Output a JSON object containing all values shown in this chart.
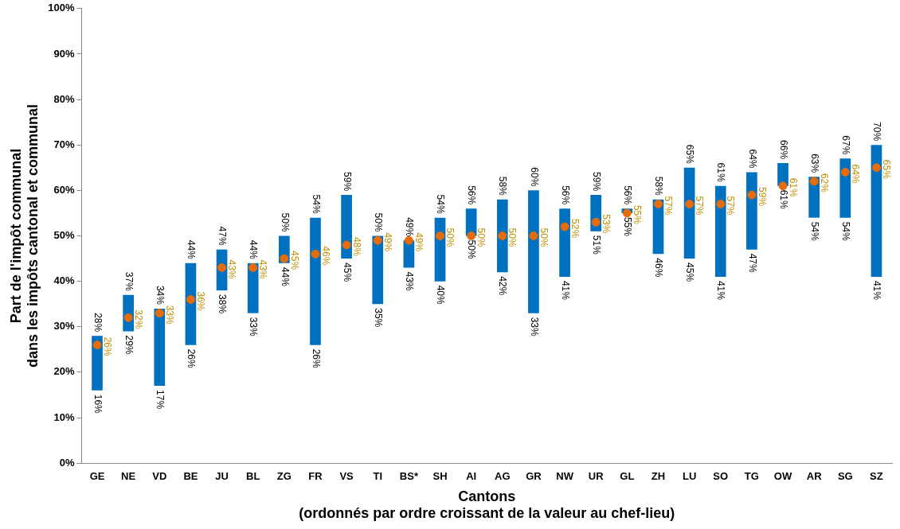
{
  "chart_data": {
    "type": "bar",
    "xlabel": "Cantons\n(ordonnés par ordre croissant de la valeur au chef-lieu)",
    "ylabel": "Part de l'impôt communal\ndans les impôts cantonal et communal",
    "categories": [
      "GE",
      "NE",
      "VD",
      "BE",
      "JU",
      "BL",
      "ZG",
      "FR",
      "VS",
      "TI",
      "BS*",
      "SH",
      "AI",
      "AG",
      "GR",
      "NW",
      "UR",
      "GL",
      "ZH",
      "LU",
      "SO",
      "TG",
      "OW",
      "AR",
      "SG",
      "SZ"
    ],
    "series": [
      {
        "color": "#0070c0",
        "base": [
          16,
          29,
          17,
          26,
          38,
          33,
          44,
          26,
          45,
          35,
          43,
          40,
          50,
          42,
          33,
          41,
          51,
          55,
          46,
          45,
          41,
          47,
          61,
          54,
          54,
          41
        ],
        "values": [
          12,
          8,
          17,
          18,
          9,
          11,
          6,
          28,
          14,
          15,
          6,
          14,
          6,
          16,
          27,
          15,
          8,
          1,
          12,
          20,
          20,
          17,
          5,
          9,
          13,
          29
        ]
      },
      {
        "type": "scatter",
        "color": "#e46c0a",
        "marker": "circle",
        "x": [
          "GE",
          "NE",
          "VD",
          "BE",
          "JU",
          "BL",
          "ZG",
          "FR",
          "VS",
          "TI",
          "BS*",
          "SH",
          "AI",
          "AG",
          "GR",
          "NW",
          "UR",
          "GL",
          "ZH",
          "LU",
          "SO",
          "TG",
          "OW",
          "AR",
          "SG",
          "SZ"
        ],
        "values": [
          26,
          32,
          33,
          36,
          43,
          43,
          45,
          46,
          48,
          49,
          49,
          50,
          50,
          50,
          50,
          52,
          53,
          55,
          57,
          57,
          57,
          59,
          61,
          62,
          64,
          65
        ],
        "value_labels": [
          "26%",
          "32%",
          "33%",
          "36%",
          "43%",
          "43%",
          "45%",
          "46%",
          "48%",
          "49%",
          "49%",
          "50%",
          "50%",
          "50%",
          "50%",
          "52%",
          "53%",
          "55%",
          "57%",
          "57%",
          "57%",
          "59%",
          "61%",
          "62%",
          "64%",
          "65%"
        ]
      }
    ],
    "ylim": [
      0,
      100
    ],
    "yticks": [
      {
        "value": 0,
        "label": "0%"
      },
      {
        "value": 10,
        "label": "10%"
      },
      {
        "value": 20,
        "label": "20%"
      },
      {
        "value": 30,
        "label": "30%"
      },
      {
        "value": 40,
        "label": "40%"
      },
      {
        "value": 50,
        "label": "50%"
      },
      {
        "value": 60,
        "label": "60%"
      },
      {
        "value": 70,
        "label": "70%"
      },
      {
        "value": 80,
        "label": "80%"
      },
      {
        "value": 90,
        "label": "90%"
      },
      {
        "value": 100,
        "label": "100%"
      }
    ],
    "grid": false,
    "legend": false,
    "annotations": [
      {
        "text": "28%",
        "x": "GE",
        "y": 28
      },
      {
        "text": "16%",
        "x": "GE",
        "y": 16
      },
      {
        "text": "37%",
        "x": "NE",
        "y": 37
      },
      {
        "text": "29%",
        "x": "NE",
        "y": 29
      },
      {
        "text": "34%",
        "x": "VD",
        "y": 34
      },
      {
        "text": "17%",
        "x": "VD",
        "y": 17
      },
      {
        "text": "44%",
        "x": "BE",
        "y": 44
      },
      {
        "text": "26%",
        "x": "BE",
        "y": 26
      },
      {
        "text": "47%",
        "x": "JU",
        "y": 47
      },
      {
        "text": "38%",
        "x": "JU",
        "y": 38
      },
      {
        "text": "44%",
        "x": "BL",
        "y": 44
      },
      {
        "text": "33%",
        "x": "BL",
        "y": 33
      },
      {
        "text": "50%",
        "x": "ZG",
        "y": 50
      },
      {
        "text": "44%",
        "x": "ZG",
        "y": 44
      },
      {
        "text": "54%",
        "x": "FR",
        "y": 54
      },
      {
        "text": "26%",
        "x": "FR",
        "y": 26
      },
      {
        "text": "59%",
        "x": "VS",
        "y": 59
      },
      {
        "text": "45%",
        "x": "VS",
        "y": 45
      },
      {
        "text": "50%",
        "x": "TI",
        "y": 50
      },
      {
        "text": "35%",
        "x": "TI",
        "y": 35
      },
      {
        "text": "49%",
        "x": "BS*",
        "y": 49
      },
      {
        "text": "43%",
        "x": "BS*",
        "y": 43
      },
      {
        "text": "54%",
        "x": "SH",
        "y": 54
      },
      {
        "text": "40%",
        "x": "SH",
        "y": 40
      },
      {
        "text": "56%",
        "x": "AI",
        "y": 56
      },
      {
        "text": "50%",
        "x": "AI",
        "y": 50
      },
      {
        "text": "58%",
        "x": "AG",
        "y": 58
      },
      {
        "text": "42%",
        "x": "AG",
        "y": 42
      },
      {
        "text": "60%",
        "x": "GR",
        "y": 60
      },
      {
        "text": "33%",
        "x": "GR",
        "y": 33
      },
      {
        "text": "56%",
        "x": "NW",
        "y": 56
      },
      {
        "text": "41%",
        "x": "NW",
        "y": 41
      },
      {
        "text": "59%",
        "x": "UR",
        "y": 59
      },
      {
        "text": "51%",
        "x": "UR",
        "y": 51
      },
      {
        "text": "56%",
        "x": "GL",
        "y": 56
      },
      {
        "text": "55%",
        "x": "GL",
        "y": 55
      },
      {
        "text": "58%",
        "x": "ZH",
        "y": 58
      },
      {
        "text": "46%",
        "x": "ZH",
        "y": 46
      },
      {
        "text": "65%",
        "x": "LU",
        "y": 65
      },
      {
        "text": "45%",
        "x": "LU",
        "y": 45
      },
      {
        "text": "61%",
        "x": "SO",
        "y": 61
      },
      {
        "text": "41%",
        "x": "SO",
        "y": 41
      },
      {
        "text": "64%",
        "x": "TG",
        "y": 64
      },
      {
        "text": "47%",
        "x": "TG",
        "y": 47
      },
      {
        "text": "66%",
        "x": "OW",
        "y": 66
      },
      {
        "text": "61%",
        "x": "OW",
        "y": 61
      },
      {
        "text": "63%",
        "x": "AR",
        "y": 63
      },
      {
        "text": "54%",
        "x": "AR",
        "y": 54
      },
      {
        "text": "67%",
        "x": "SG",
        "y": 67
      },
      {
        "text": "54%",
        "x": "SG",
        "y": 54
      },
      {
        "text": "70%",
        "x": "SZ",
        "y": 70
      },
      {
        "text": "41%",
        "x": "SZ",
        "y": 41
      }
    ]
  }
}
